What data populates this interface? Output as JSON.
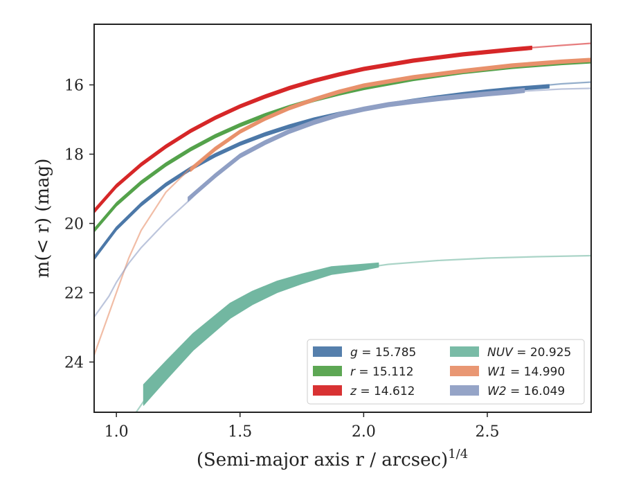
{
  "chart_data": {
    "type": "line",
    "title": "",
    "xlabel": "(Semi-major axis r / arcsec)",
    "xlabel_superscript": "1/4",
    "ylabel": "m(< r) (mag)",
    "xlim": [
      0.91,
      2.92
    ],
    "ylim": [
      25.45,
      14.25
    ],
    "y_inverted": true,
    "grid": false,
    "legend_placement": "lower-right",
    "x_ticks": [
      "1.0",
      "1.5",
      "2.0",
      "2.5"
    ],
    "y_ticks": [
      "16",
      "18",
      "20",
      "22",
      "24"
    ],
    "legend": [
      {
        "band": "g",
        "value": "15.785"
      },
      {
        "band": "r",
        "value": "15.112"
      },
      {
        "band": "z",
        "value": "14.612"
      },
      {
        "band": "NUV",
        "value": "20.925"
      },
      {
        "band": "W1",
        "value": "14.990"
      },
      {
        "band": "W2",
        "value": "16.049"
      }
    ],
    "series": [
      {
        "id": "g",
        "color": "#4c78a8",
        "data_band": [
          [
            0.91,
            21.0
          ],
          [
            1.0,
            20.15
          ],
          [
            1.1,
            19.45
          ],
          [
            1.2,
            18.88
          ],
          [
            1.3,
            18.42
          ],
          [
            1.4,
            18.03
          ],
          [
            1.5,
            17.7
          ],
          [
            1.6,
            17.43
          ],
          [
            1.7,
            17.2
          ],
          [
            1.8,
            17.0
          ],
          [
            1.9,
            16.84
          ],
          [
            2.0,
            16.7
          ],
          [
            2.1,
            16.57
          ],
          [
            2.2,
            16.46
          ],
          [
            2.3,
            16.36
          ],
          [
            2.4,
            16.27
          ],
          [
            2.5,
            16.19
          ],
          [
            2.6,
            16.12
          ],
          [
            2.75,
            16.04
          ]
        ],
        "band_halfwidth": 0.05,
        "model": [
          [
            0.91,
            20.97
          ],
          [
            1.0,
            20.12
          ],
          [
            1.2,
            18.85
          ],
          [
            1.4,
            18.0
          ],
          [
            1.6,
            17.4
          ],
          [
            1.8,
            16.97
          ],
          [
            2.0,
            16.67
          ],
          [
            2.2,
            16.43
          ],
          [
            2.4,
            16.25
          ],
          [
            2.6,
            16.1
          ],
          [
            2.8,
            15.97
          ],
          [
            2.92,
            15.92
          ]
        ]
      },
      {
        "id": "r",
        "color": "#54a24b",
        "data_band": [
          [
            0.91,
            20.2
          ],
          [
            1.0,
            19.45
          ],
          [
            1.1,
            18.82
          ],
          [
            1.2,
            18.3
          ],
          [
            1.3,
            17.86
          ],
          [
            1.4,
            17.48
          ],
          [
            1.5,
            17.16
          ],
          [
            1.6,
            16.88
          ],
          [
            1.7,
            16.64
          ],
          [
            1.8,
            16.43
          ],
          [
            1.9,
            16.25
          ],
          [
            2.0,
            16.09
          ],
          [
            2.2,
            15.83
          ],
          [
            2.4,
            15.63
          ],
          [
            2.6,
            15.48
          ],
          [
            2.8,
            15.37
          ],
          [
            2.92,
            15.32
          ]
        ],
        "band_halfwidth": 0.05,
        "model": [
          [
            0.91,
            20.18
          ],
          [
            1.0,
            19.43
          ],
          [
            1.2,
            18.28
          ],
          [
            1.4,
            17.46
          ],
          [
            1.6,
            16.86
          ],
          [
            1.8,
            16.41
          ],
          [
            2.0,
            16.07
          ],
          [
            2.2,
            15.81
          ],
          [
            2.4,
            15.6
          ],
          [
            2.6,
            15.45
          ],
          [
            2.8,
            15.33
          ],
          [
            2.92,
            15.27
          ]
        ]
      },
      {
        "id": "z",
        "color": "#d62728",
        "data_band": [
          [
            0.91,
            19.65
          ],
          [
            1.0,
            18.92
          ],
          [
            1.1,
            18.3
          ],
          [
            1.2,
            17.78
          ],
          [
            1.3,
            17.33
          ],
          [
            1.4,
            16.95
          ],
          [
            1.5,
            16.62
          ],
          [
            1.6,
            16.34
          ],
          [
            1.7,
            16.09
          ],
          [
            1.8,
            15.88
          ],
          [
            1.9,
            15.7
          ],
          [
            2.0,
            15.54
          ],
          [
            2.2,
            15.3
          ],
          [
            2.4,
            15.12
          ],
          [
            2.6,
            14.98
          ],
          [
            2.68,
            14.93
          ]
        ],
        "band_halfwidth": 0.05,
        "model": [
          [
            0.91,
            19.6
          ],
          [
            1.0,
            18.88
          ],
          [
            1.2,
            17.75
          ],
          [
            1.4,
            16.93
          ],
          [
            1.6,
            16.32
          ],
          [
            1.8,
            15.87
          ],
          [
            2.0,
            15.53
          ],
          [
            2.2,
            15.28
          ],
          [
            2.4,
            15.1
          ],
          [
            2.6,
            14.97
          ],
          [
            2.8,
            14.86
          ],
          [
            2.92,
            14.8
          ]
        ]
      },
      {
        "id": "NUV",
        "color": "#72b7a1",
        "data_band": [
          [
            1.11,
            24.95
          ],
          [
            1.2,
            24.25
          ],
          [
            1.31,
            23.42
          ],
          [
            1.46,
            22.52
          ],
          [
            1.55,
            22.15
          ],
          [
            1.65,
            21.83
          ],
          [
            1.75,
            21.6
          ],
          [
            1.87,
            21.36
          ],
          [
            2.0,
            21.26
          ],
          [
            2.06,
            21.2
          ]
        ],
        "band_halfwidth_left": 0.3,
        "band_halfwidth_right": 0.06,
        "model": [
          [
            1.08,
            25.45
          ],
          [
            1.2,
            24.2
          ],
          [
            1.35,
            23.15
          ],
          [
            1.5,
            22.35
          ],
          [
            1.7,
            21.72
          ],
          [
            1.9,
            21.38
          ],
          [
            2.1,
            21.18
          ],
          [
            2.3,
            21.07
          ],
          [
            2.5,
            21.0
          ],
          [
            2.7,
            20.96
          ],
          [
            2.92,
            20.93
          ]
        ]
      },
      {
        "id": "W1",
        "color": "#e8916b",
        "data_band": [
          [
            1.3,
            18.45
          ],
          [
            1.4,
            17.85
          ],
          [
            1.5,
            17.35
          ],
          [
            1.6,
            16.98
          ],
          [
            1.7,
            16.67
          ],
          [
            1.8,
            16.42
          ],
          [
            1.9,
            16.2
          ],
          [
            2.0,
            16.02
          ],
          [
            2.2,
            15.78
          ],
          [
            2.4,
            15.6
          ],
          [
            2.6,
            15.44
          ],
          [
            2.8,
            15.33
          ],
          [
            2.92,
            15.28
          ]
        ],
        "band_halfwidth": 0.05,
        "model": [
          [
            0.91,
            23.8
          ],
          [
            0.95,
            23.0
          ],
          [
            1.0,
            22.0
          ],
          [
            1.05,
            21.0
          ],
          [
            1.1,
            20.2
          ],
          [
            1.2,
            19.1
          ],
          [
            1.3,
            18.4
          ],
          [
            1.4,
            17.8
          ],
          [
            1.5,
            17.32
          ],
          [
            1.6,
            16.95
          ],
          [
            1.8,
            16.4
          ],
          [
            2.0,
            16.0
          ],
          [
            2.2,
            15.75
          ],
          [
            2.4,
            15.57
          ],
          [
            2.6,
            15.42
          ],
          [
            2.8,
            15.31
          ],
          [
            2.92,
            15.25
          ]
        ]
      },
      {
        "id": "W2",
        "color": "#8f9fc4",
        "data_band": [
          [
            1.29,
            19.3
          ],
          [
            1.4,
            18.62
          ],
          [
            1.5,
            18.05
          ],
          [
            1.6,
            17.67
          ],
          [
            1.7,
            17.34
          ],
          [
            1.8,
            17.08
          ],
          [
            1.9,
            16.86
          ],
          [
            2.0,
            16.7
          ],
          [
            2.1,
            16.57
          ],
          [
            2.2,
            16.48
          ],
          [
            2.3,
            16.4
          ],
          [
            2.4,
            16.33
          ],
          [
            2.5,
            16.26
          ],
          [
            2.6,
            16.2
          ],
          [
            2.65,
            16.16
          ]
        ],
        "band_halfwidth": 0.06,
        "model": [
          [
            0.91,
            22.7
          ],
          [
            0.97,
            22.1
          ],
          [
            1.0,
            21.7
          ],
          [
            1.05,
            21.15
          ],
          [
            1.1,
            20.7
          ],
          [
            1.2,
            19.95
          ],
          [
            1.3,
            19.3
          ],
          [
            1.4,
            18.6
          ],
          [
            1.5,
            18.05
          ],
          [
            1.6,
            17.65
          ],
          [
            1.8,
            17.07
          ],
          [
            2.0,
            16.7
          ],
          [
            2.2,
            16.47
          ],
          [
            2.4,
            16.32
          ],
          [
            2.6,
            16.2
          ],
          [
            2.8,
            16.12
          ],
          [
            2.92,
            16.1
          ]
        ]
      }
    ]
  }
}
